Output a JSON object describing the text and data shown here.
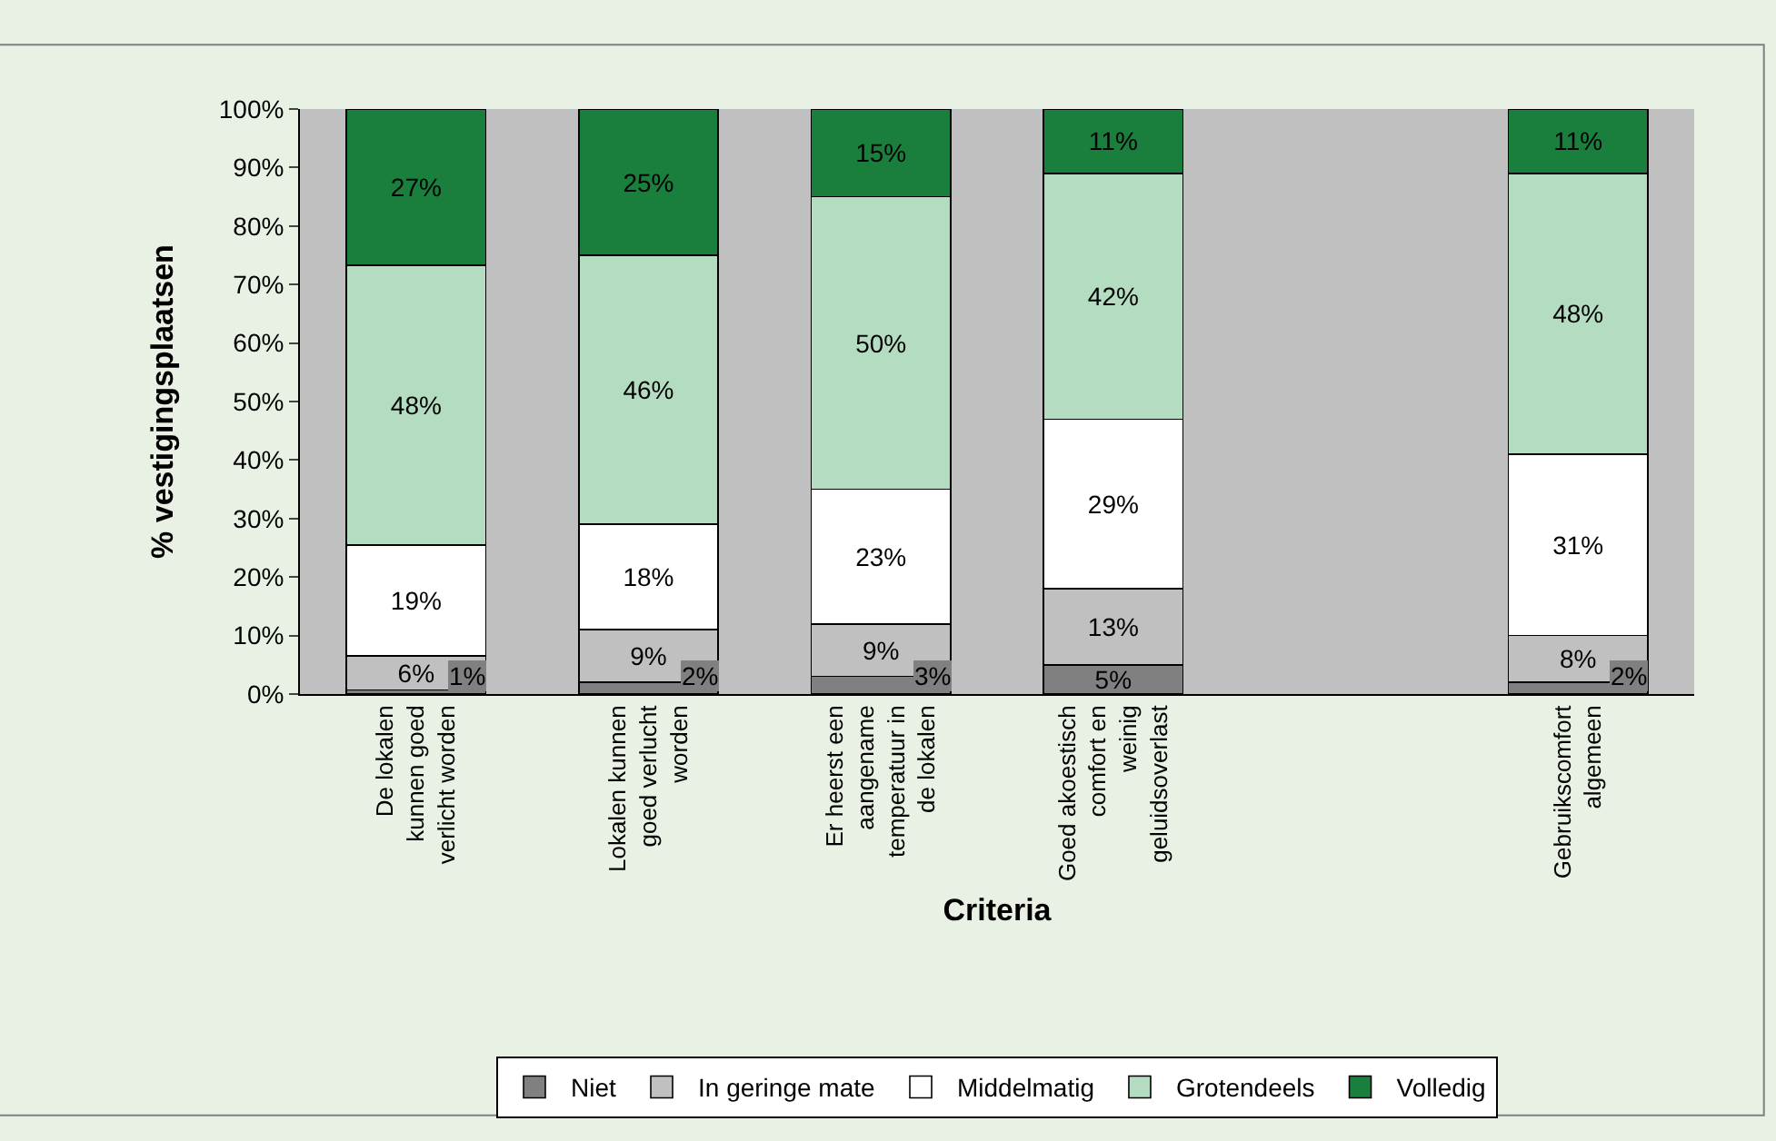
{
  "chart_data": {
    "type": "bar",
    "stacked": true,
    "categories": [
      "De lokalen kunnen goed verlicht worden",
      "Lokalen kunnen goed verlucht worden",
      "Er heerst een aangename temperatuur in de lokalen",
      "Goed akoestisch comfort en weinig geluidsoverlast",
      null,
      "Gebruikscomfort algemeen"
    ],
    "xlabel": "Criteria",
    "ylabel": "% vestigingsplaatsen",
    "ylim": [
      0,
      100
    ],
    "yticks": [
      {
        "value": 0,
        "label": "0%"
      },
      {
        "value": 10,
        "label": "10%"
      },
      {
        "value": 20,
        "label": "20%"
      },
      {
        "value": 30,
        "label": "30%"
      },
      {
        "value": 40,
        "label": "40%"
      },
      {
        "value": 50,
        "label": "50%"
      },
      {
        "value": 60,
        "label": "60%"
      },
      {
        "value": 70,
        "label": "70%"
      },
      {
        "value": 80,
        "label": "80%"
      },
      {
        "value": 90,
        "label": "90%"
      },
      {
        "value": 100,
        "label": "100%"
      }
    ],
    "grid": false,
    "legend": "bottom",
    "series": [
      {
        "name": "Niet",
        "color": "#808080",
        "values": [
          0.7,
          2,
          3,
          5,
          null,
          2
        ],
        "value_labels": [
          "1%",
          "2%",
          "3%",
          "5%",
          null,
          "2%"
        ]
      },
      {
        "name": "In geringe mate",
        "color": "#c0c0c0",
        "values": [
          5.8,
          9,
          9,
          13,
          null,
          8
        ],
        "value_labels": [
          "6%",
          "9%",
          "9%",
          "13%",
          null,
          "8%"
        ]
      },
      {
        "name": "Middelmatig",
        "color": "#ffffff",
        "values": [
          19,
          18,
          23,
          29,
          null,
          31
        ],
        "value_labels": [
          "19%",
          "18%",
          "23%",
          "29%",
          null,
          "31%"
        ]
      },
      {
        "name": "Grotendeels",
        "color": "#b3dcc0",
        "values": [
          47.8,
          46,
          50,
          42,
          null,
          48
        ],
        "value_labels": [
          "48%",
          "46%",
          "50%",
          "42%",
          null,
          "48%"
        ]
      },
      {
        "name": "Volledig",
        "color": "#1a7f3c",
        "values": [
          26.7,
          25,
          15,
          11,
          null,
          11
        ],
        "value_labels": [
          "27%",
          "25%",
          "15%",
          "11%",
          null,
          "11%"
        ]
      }
    ]
  }
}
